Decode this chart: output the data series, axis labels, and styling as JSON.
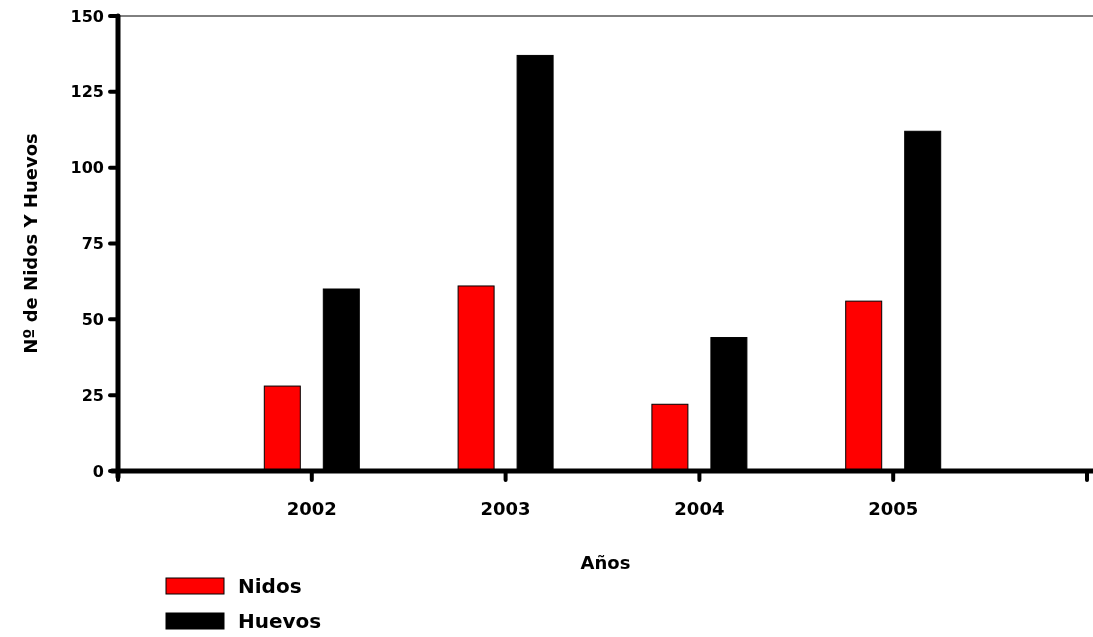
{
  "chart_data": {
    "type": "bar",
    "xlabel": "Años",
    "ylabel": "Nº de Nidos Y Huevos",
    "categories": [
      null,
      "2002",
      "2003",
      "2004",
      "2005",
      null
    ],
    "series": [
      {
        "name": "Nidos",
        "color": "#ff0000",
        "values": [
          null,
          28,
          61,
          22,
          56,
          null
        ]
      },
      {
        "name": "Huevos",
        "color": "#000000",
        "values": [
          null,
          60,
          137,
          44,
          112,
          null
        ]
      }
    ],
    "ylim": [
      0,
      150
    ],
    "yticks": [
      0,
      25,
      50,
      75,
      100,
      125,
      150
    ],
    "grid": false,
    "legend": "bottom left"
  }
}
